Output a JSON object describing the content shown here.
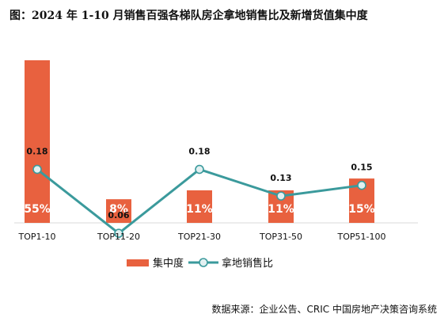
{
  "title": "图：2024 年 1-10 月销售百强各梯队房企拿地销售比及新增货值集中度",
  "source": "数据来源：企业公告、CRIC 中国房地产决策咨询系统",
  "chart_data": {
    "type": "bar",
    "categories": [
      "TOP1-10",
      "TOP11-20",
      "TOP21-30",
      "TOP31-50",
      "TOP51-100"
    ],
    "series": [
      {
        "name": "集中度",
        "type": "bar",
        "values": [
          55,
          8,
          11,
          11,
          15
        ],
        "labels": [
          "55%",
          "8%",
          "11%",
          "11%",
          "15%"
        ],
        "color": "#e8613f"
      },
      {
        "name": "拿地销售比",
        "type": "line",
        "values": [
          0.18,
          0.06,
          0.18,
          0.13,
          0.15
        ],
        "labels": [
          "0.18",
          "0.06",
          "0.18",
          "0.13",
          "0.15"
        ],
        "color": "#3b9a9c"
      }
    ],
    "legend": "bottom",
    "grid": false
  }
}
